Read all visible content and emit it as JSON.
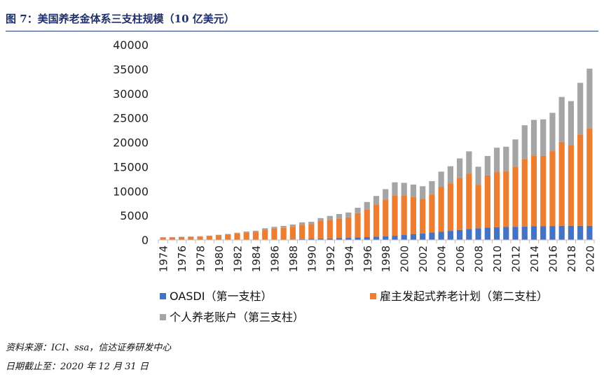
{
  "figure": {
    "title": "图 7：美国养老金体系三支柱规模（10 亿美元）",
    "source": "资料来源：ICI、ssa，信达证券研发中心",
    "date_note": "日期截止至：2020 年 12  月 31 日"
  },
  "colors": {
    "oasdi": "#4472c4",
    "employer": "#ed7d31",
    "individual": "#a5a5a5",
    "axis": "#bfbfbf",
    "title": "#1f2f6b"
  },
  "chart_data": {
    "type": "bar",
    "stacked": true,
    "title": "美国养老金体系三支柱规模（10 亿美元）",
    "xlabel": "",
    "ylabel": "",
    "ylim": [
      0,
      40000
    ],
    "yticks": [
      0,
      5000,
      10000,
      15000,
      20000,
      25000,
      30000,
      35000,
      40000
    ],
    "grid": false,
    "legend_position": "bottom-left",
    "categories": [
      "1974",
      "1975",
      "1976",
      "1977",
      "1978",
      "1979",
      "1980",
      "1981",
      "1982",
      "1983",
      "1984",
      "1985",
      "1986",
      "1987",
      "1988",
      "1989",
      "1990",
      "1991",
      "1992",
      "1993",
      "1994",
      "1995",
      "1996",
      "1997",
      "1998",
      "1999",
      "2000",
      "2001",
      "2002",
      "2003",
      "2004",
      "2005",
      "2006",
      "2007",
      "2008",
      "2009",
      "2010",
      "2011",
      "2012",
      "2013",
      "2014",
      "2015",
      "2016",
      "2017",
      "2018",
      "2019",
      "2020"
    ],
    "x_tick_labels": [
      "1974",
      "1976",
      "1978",
      "1980",
      "1982",
      "1984",
      "1986",
      "1988",
      "1990",
      "1992",
      "1994",
      "1996",
      "1998",
      "2000",
      "2002",
      "2004",
      "2006",
      "2008",
      "2010",
      "2012",
      "2014",
      "2016",
      "2018",
      "2020"
    ],
    "series": [
      {
        "name": "OASDI（第一支柱）",
        "color_key": "oasdi",
        "values": [
          50,
          50,
          45,
          40,
          35,
          30,
          30,
          25,
          25,
          25,
          30,
          40,
          50,
          70,
          100,
          150,
          220,
          270,
          310,
          360,
          420,
          490,
          570,
          660,
          760,
          850,
          1000,
          1200,
          1300,
          1500,
          1700,
          1850,
          2050,
          2250,
          2400,
          2550,
          2600,
          2650,
          2700,
          2750,
          2800,
          2800,
          2850,
          2900,
          2900,
          2900,
          2900
        ]
      },
      {
        "name": "雇主发起式养老计划（第二支柱）",
        "color_key": "employer",
        "values": [
          450,
          480,
          550,
          590,
          650,
          750,
          900,
          1050,
          1300,
          1500,
          1600,
          2050,
          2300,
          2400,
          2600,
          2950,
          3000,
          3600,
          3800,
          4000,
          4200,
          5000,
          5700,
          6600,
          7500,
          8300,
          8100,
          7600,
          7100,
          7800,
          9200,
          9750,
          10650,
          11350,
          8900,
          10650,
          11300,
          11450,
          12300,
          13850,
          14500,
          14450,
          15350,
          17200,
          16450,
          18700,
          20000
        ]
      },
      {
        "name": "个人养老账户（第三支柱）",
        "color_key": "individual",
        "values": [
          50,
          50,
          60,
          70,
          80,
          100,
          120,
          140,
          150,
          200,
          250,
          300,
          330,
          400,
          450,
          500,
          500,
          600,
          800,
          950,
          1000,
          1100,
          1500,
          1750,
          2150,
          2650,
          2600,
          2550,
          2600,
          2750,
          3100,
          3500,
          4000,
          4550,
          3700,
          4000,
          5000,
          5000,
          5600,
          6900,
          7300,
          7450,
          7850,
          9200,
          9100,
          10600,
          12200
        ]
      }
    ]
  }
}
